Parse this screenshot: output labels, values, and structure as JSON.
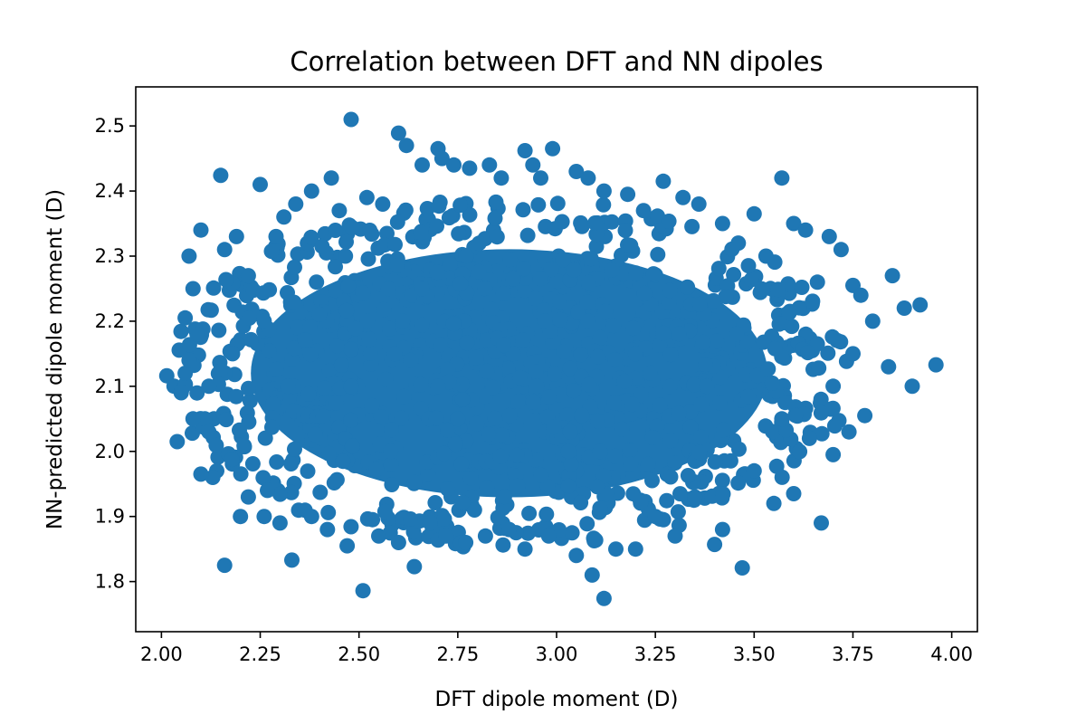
{
  "chart_data": {
    "type": "scatter",
    "title": "Correlation between DFT and NN dipoles",
    "xlabel": "DFT dipole moment (D)",
    "ylabel": "NN-predicted dipole moment (D)",
    "xlim": [
      1.935,
      4.065
    ],
    "ylim": [
      1.723,
      2.56
    ],
    "x_ticks": [
      "2.00",
      "2.25",
      "2.50",
      "2.75",
      "3.00",
      "3.25",
      "3.50",
      "3.75",
      "4.00"
    ],
    "y_ticks": [
      "1.8",
      "1.9",
      "2.0",
      "2.1",
      "2.2",
      "2.3",
      "2.4",
      "2.5"
    ],
    "grid": false,
    "legend": "none",
    "marker_color": "#1f77b4",
    "series": [
      {
        "x": [
          2.04,
          2.06,
          2.07,
          2.1,
          2.15,
          2.16,
          2.19,
          2.09,
          2.06,
          2.05,
          2.11,
          2.14,
          2.12,
          2.07,
          2.08,
          2.22,
          2.25,
          2.29,
          2.31,
          2.34,
          2.38,
          2.43,
          2.45,
          2.48,
          2.52,
          2.56,
          2.6,
          2.62,
          2.66,
          2.7,
          2.71,
          2.74,
          2.78,
          2.83,
          2.86,
          2.92,
          2.94,
          2.96,
          2.99,
          3.05,
          3.08,
          3.12,
          3.18,
          3.22,
          3.27,
          3.32,
          3.36,
          3.42,
          3.46,
          3.5,
          3.53,
          3.57,
          3.6,
          3.63,
          3.66,
          3.69,
          3.72,
          3.75,
          3.77,
          3.8,
          3.85,
          3.88,
          3.92,
          3.96,
          3.9,
          3.84,
          3.78,
          3.74,
          3.7,
          3.67,
          3.64,
          3.6,
          3.55,
          3.5,
          3.47,
          3.42,
          3.4,
          3.35,
          3.3,
          3.25,
          3.2,
          3.15,
          3.12,
          3.09,
          3.05,
          2.98,
          2.92,
          2.88,
          2.82,
          2.77,
          2.72,
          2.68,
          2.64,
          2.6,
          2.55,
          2.51,
          2.47,
          2.42,
          2.38,
          2.33,
          2.3,
          2.26,
          2.22,
          2.2,
          2.16,
          2.13,
          2.1,
          2.08,
          2.12,
          2.18,
          2.26,
          2.32,
          2.58,
          2.75,
          2.95,
          3.08,
          3.11,
          3.2,
          3.38,
          3.57,
          3.7,
          3.75,
          2.61,
          2.66,
          2.7,
          2.97,
          3.03,
          2.48,
          2.59
        ],
        "y": [
          2.015,
          2.205,
          2.3,
          2.34,
          2.424,
          2.31,
          2.33,
          2.18,
          2.12,
          2.09,
          2.05,
          1.97,
          2.03,
          2.14,
          2.25,
          2.27,
          2.41,
          2.33,
          2.36,
          2.38,
          2.4,
          2.42,
          2.37,
          2.51,
          2.39,
          2.38,
          2.489,
          2.47,
          2.44,
          2.465,
          2.45,
          2.44,
          2.435,
          2.44,
          2.42,
          2.462,
          2.44,
          2.42,
          2.465,
          2.43,
          2.42,
          2.4,
          2.395,
          2.37,
          2.415,
          2.39,
          2.38,
          2.35,
          2.32,
          2.365,
          2.3,
          2.42,
          2.35,
          2.34,
          2.26,
          2.33,
          2.31,
          2.255,
          2.24,
          2.2,
          2.27,
          2.22,
          2.225,
          2.133,
          2.1,
          2.13,
          2.055,
          2.03,
          1.995,
          1.89,
          2.02,
          1.935,
          1.92,
          1.97,
          1.821,
          1.88,
          1.857,
          1.93,
          1.87,
          1.9,
          1.85,
          1.85,
          1.774,
          1.81,
          1.84,
          1.87,
          1.85,
          1.88,
          1.87,
          1.86,
          1.87,
          1.89,
          1.823,
          1.86,
          1.87,
          1.786,
          1.855,
          1.88,
          1.9,
          1.833,
          1.89,
          1.9,
          1.93,
          1.9,
          1.825,
          1.96,
          1.965,
          2.05,
          2.1,
          2.15,
          2.2,
          2.1,
          2.0,
          2.05,
          2.1,
          2.2,
          2.0,
          2.15,
          2.1,
          2.05,
          2.1,
          2.15,
          2.2,
          2.25,
          2.1,
          2.2,
          2.0,
          2.1,
          2.15
        ]
      }
    ]
  }
}
